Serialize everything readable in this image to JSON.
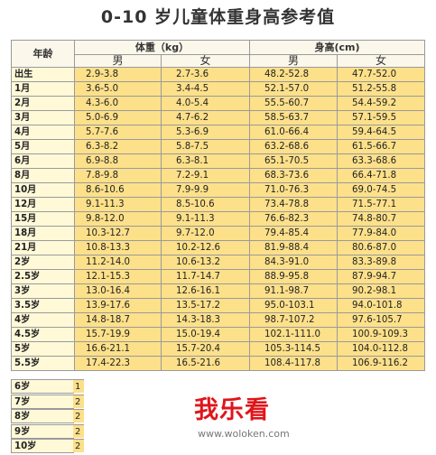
{
  "title": "0-10 岁儿童体重身高参考值",
  "header": {
    "age": "年龄",
    "weight": "体重（kg）",
    "height": "身高(cm)",
    "boy": "男",
    "girl": "女"
  },
  "rows": [
    {
      "age": "出生",
      "wb": "2.9-3.8",
      "wg": "2.7-3.6",
      "hb": "48.2-52.8",
      "hg": "47.7-52.0"
    },
    {
      "age": "1月",
      "wb": "3.6-5.0",
      "wg": "3.4-4.5",
      "hb": "52.1-57.0",
      "hg": "51.2-55.8"
    },
    {
      "age": "2月",
      "wb": "4.3-6.0",
      "wg": "4.0-5.4",
      "hb": "55.5-60.7",
      "hg": "54.4-59.2"
    },
    {
      "age": "3月",
      "wb": "5.0-6.9",
      "wg": "4.7-6.2",
      "hb": "58.5-63.7",
      "hg": "57.1-59.5"
    },
    {
      "age": "4月",
      "wb": "5.7-7.6",
      "wg": "5.3-6.9",
      "hb": "61.0-66.4",
      "hg": "59.4-64.5"
    },
    {
      "age": "5月",
      "wb": "6.3-8.2",
      "wg": "5.8-7.5",
      "hb": "63.2-68.6",
      "hg": "61.5-66.7"
    },
    {
      "age": "6月",
      "wb": "6.9-8.8",
      "wg": "6.3-8.1",
      "hb": "65.1-70.5",
      "hg": "63.3-68.6"
    },
    {
      "age": "8月",
      "wb": "7.8-9.8",
      "wg": "7.2-9.1",
      "hb": "68.3-73.6",
      "hg": "66.4-71.8"
    },
    {
      "age": "10月",
      "wb": "8.6-10.6",
      "wg": "7.9-9.9",
      "hb": "71.0-76.3",
      "hg": "69.0-74.5"
    },
    {
      "age": "12月",
      "wb": "9.1-11.3",
      "wg": "8.5-10.6",
      "hb": "73.4-78.8",
      "hg": "71.5-77.1"
    },
    {
      "age": "15月",
      "wb": "9.8-12.0",
      "wg": "9.1-11.3",
      "hb": "76.6-82.3",
      "hg": "74.8-80.7"
    },
    {
      "age": "18月",
      "wb": "10.3-12.7",
      "wg": "9.7-12.0",
      "hb": "79.4-85.4",
      "hg": "77.9-84.0"
    },
    {
      "age": "21月",
      "wb": "10.8-13.3",
      "wg": "10.2-12.6",
      "hb": "81.9-88.4",
      "hg": "80.6-87.0"
    },
    {
      "age": "2岁",
      "wb": "11.2-14.0",
      "wg": "10.6-13.2",
      "hb": "84.3-91.0",
      "hg": "83.3-89.8"
    },
    {
      "age": "2.5岁",
      "wb": "12.1-15.3",
      "wg": "11.7-14.7",
      "hb": "88.9-95.8",
      "hg": "87.9-94.7"
    },
    {
      "age": "3岁",
      "wb": "13.0-16.4",
      "wg": "12.6-16.1",
      "hb": "91.1-98.7",
      "hg": "90.2-98.1"
    },
    {
      "age": "3.5岁",
      "wb": "13.9-17.6",
      "wg": "13.5-17.2",
      "hb": "95.0-103.1",
      "hg": "94.0-101.8"
    },
    {
      "age": "4岁",
      "wb": "14.8-18.7",
      "wg": "14.3-18.3",
      "hb": "98.7-107.2",
      "hg": "97.6-105.7"
    },
    {
      "age": "4.5岁",
      "wb": "15.7-19.9",
      "wg": "15.0-19.4",
      "hb": "102.1-111.0",
      "hg": "100.9-109.3"
    },
    {
      "age": "5岁",
      "wb": "16.6-21.1",
      "wg": "15.7-20.4",
      "hb": "105.3-114.5",
      "hg": "104.0-112.8"
    },
    {
      "age": "5.5岁",
      "wb": "17.4-22.3",
      "wg": "16.5-21.6",
      "hb": "108.4-117.8",
      "hg": "106.9-116.2"
    }
  ],
  "masked_rows": [
    {
      "age": "6岁",
      "stub": "1"
    },
    {
      "age": "7岁",
      "stub": "2"
    },
    {
      "age": "8岁",
      "stub": "2"
    },
    {
      "age": "9岁",
      "stub": "2"
    },
    {
      "age": "10岁",
      "stub": "2"
    }
  ],
  "watermark": {
    "text": "我乐看",
    "url": "www.woloken.com"
  },
  "colors": {
    "cell": "#fde08a",
    "age_cell": "#fff9d8",
    "header": "#fbf7ea",
    "watermark": "#e0151a"
  }
}
